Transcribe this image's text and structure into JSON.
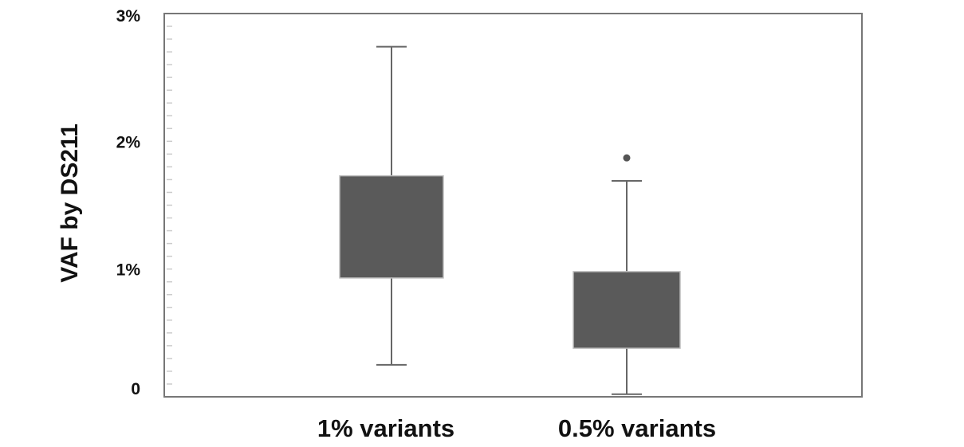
{
  "chart_data": {
    "type": "box",
    "title": "",
    "xlabel": "",
    "ylabel": "VAF by DS211",
    "ylim": [
      0,
      3
    ],
    "y_ticks": [
      {
        "value": 0,
        "label": "0"
      },
      {
        "value": 1,
        "label": "1%"
      },
      {
        "value": 2,
        "label": "2%"
      },
      {
        "value": 3,
        "label": "3%"
      }
    ],
    "categories": [
      "1% variants",
      "0.5% variants"
    ],
    "series": [
      {
        "name": "1% variants",
        "min": 0.25,
        "q1": 0.93,
        "q3": 1.73,
        "max": 2.74,
        "outliers": []
      },
      {
        "name": "0.5% variants",
        "min": 0.02,
        "q1": 0.38,
        "q3": 0.98,
        "max": 1.69,
        "outliers": [
          1.87
        ]
      }
    ],
    "colors": {
      "box": "#5a5a5a",
      "whisker": "#666666",
      "outlier": "#555555",
      "frame": "#777777",
      "minor_tick": "#cccccc"
    },
    "grid": false
  }
}
